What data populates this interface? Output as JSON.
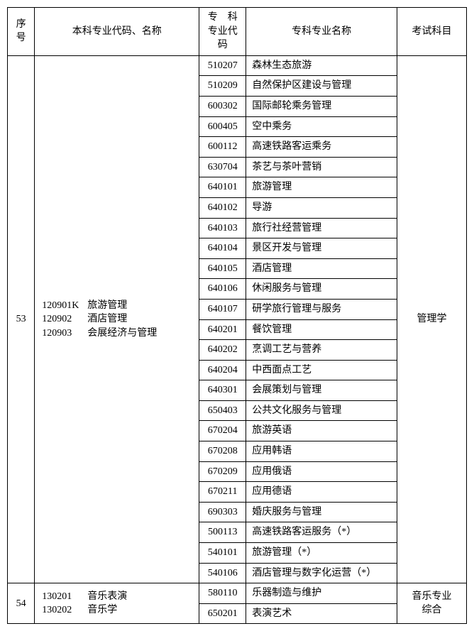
{
  "header": {
    "seq": "序号",
    "bk": "本科专业代码、名称",
    "zkcode_l1": "专　科",
    "zkcode_l2": "专业代码",
    "zkname": "专科专业名称",
    "exam": "考试科目"
  },
  "rows": [
    {
      "seq": "53",
      "bk": [
        {
          "code": "120901K",
          "name": "旅游管理"
        },
        {
          "code": "120902",
          "name": "酒店管理"
        },
        {
          "code": "120903",
          "name": "会展经济与管理"
        }
      ],
      "zk": [
        {
          "code": "510207",
          "name": "森林生态旅游"
        },
        {
          "code": "510209",
          "name": "自然保护区建设与管理"
        },
        {
          "code": "600302",
          "name": "国际邮轮乘务管理"
        },
        {
          "code": "600405",
          "name": "空中乘务"
        },
        {
          "code": "600112",
          "name": "高速铁路客运乘务"
        },
        {
          "code": "630704",
          "name": "茶艺与茶叶营销"
        },
        {
          "code": "640101",
          "name": "旅游管理"
        },
        {
          "code": "640102",
          "name": "导游"
        },
        {
          "code": "640103",
          "name": "旅行社经营管理"
        },
        {
          "code": "640104",
          "name": "景区开发与管理"
        },
        {
          "code": "640105",
          "name": "酒店管理"
        },
        {
          "code": "640106",
          "name": "休闲服务与管理"
        },
        {
          "code": "640107",
          "name": "研学旅行管理与服务"
        },
        {
          "code": "640201",
          "name": "餐饮管理"
        },
        {
          "code": "640202",
          "name": "烹调工艺与营养"
        },
        {
          "code": "640204",
          "name": "中西面点工艺"
        },
        {
          "code": "640301",
          "name": "会展策划与管理"
        },
        {
          "code": "650403",
          "name": "公共文化服务与管理"
        },
        {
          "code": "670204",
          "name": "旅游英语"
        },
        {
          "code": "670208",
          "name": "应用韩语"
        },
        {
          "code": "670209",
          "name": "应用俄语"
        },
        {
          "code": "670211",
          "name": "应用德语"
        },
        {
          "code": "690303",
          "name": "婚庆服务与管理"
        },
        {
          "code": "500113",
          "name": "高速铁路客运服务（*）"
        },
        {
          "code": "540101",
          "name": "旅游管理（*）"
        },
        {
          "code": "540106",
          "name": "酒店管理与数字化运营（*）"
        }
      ],
      "exam": "管理学"
    },
    {
      "seq": "54",
      "bk": [
        {
          "code": "130201",
          "name": "音乐表演"
        },
        {
          "code": "130202",
          "name": "音乐学"
        }
      ],
      "zk": [
        {
          "code": "580110",
          "name": "乐器制造与维护"
        },
        {
          "code": "650201",
          "name": "表演艺术"
        }
      ],
      "exam_l1": "音乐专业",
      "exam_l2": "综合"
    }
  ]
}
